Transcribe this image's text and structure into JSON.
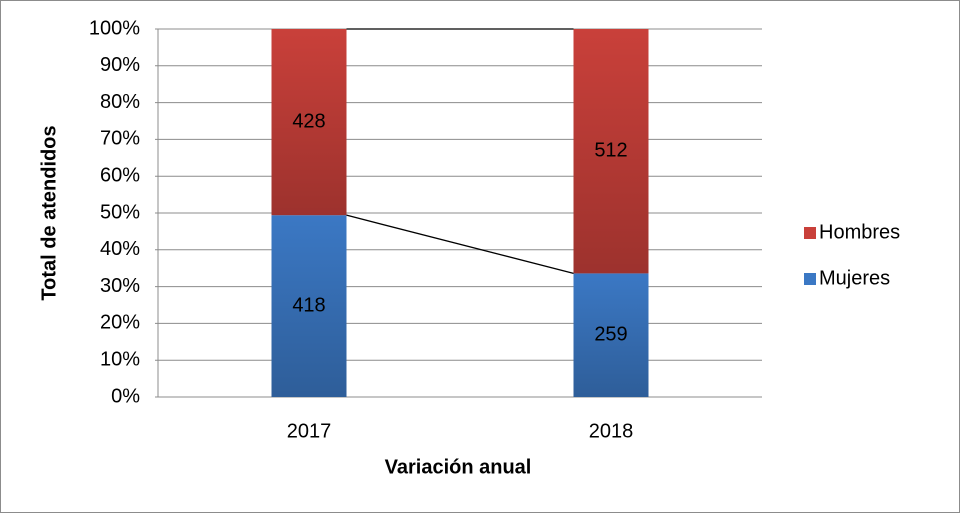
{
  "chart_data": {
    "type": "bar",
    "stacked": "percent",
    "categories": [
      "2017",
      "2018"
    ],
    "series": [
      {
        "name": "Mujeres",
        "color": "#3b78c4",
        "values": [
          418,
          259
        ]
      },
      {
        "name": "Hombres",
        "color": "#c9403a",
        "values": [
          428,
          512
        ]
      }
    ],
    "xlabel": "Variación anual",
    "ylabel": "Total de atendidos",
    "ylim": [
      0,
      100
    ],
    "yticks": [
      {
        "value": 0,
        "label": "0%"
      },
      {
        "value": 10,
        "label": "10%"
      },
      {
        "value": 20,
        "label": "20%"
      },
      {
        "value": 30,
        "label": "30%"
      },
      {
        "value": 40,
        "label": "40%"
      },
      {
        "value": 50,
        "label": "50%"
      },
      {
        "value": 60,
        "label": "60%"
      },
      {
        "value": 70,
        "label": "70%"
      },
      {
        "value": 80,
        "label": "80%"
      },
      {
        "value": 90,
        "label": "90%"
      },
      {
        "value": 100,
        "label": "100%"
      }
    ],
    "grid": true,
    "legend": "right",
    "series_lines": true
  }
}
